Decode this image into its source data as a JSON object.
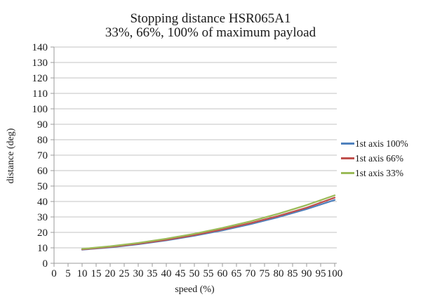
{
  "chart_data": {
    "type": "line",
    "title": "Stopping distance HSR065A1",
    "subtitle": "33%, 66%, 100% of maximum payload",
    "xlabel": "speed (%)",
    "ylabel": "distance (deg)",
    "xlim": [
      0,
      100
    ],
    "ylim": [
      0,
      140
    ],
    "x_ticks": [
      0,
      5,
      10,
      15,
      20,
      25,
      30,
      35,
      40,
      45,
      50,
      55,
      60,
      65,
      70,
      75,
      80,
      85,
      90,
      95,
      100
    ],
    "y_ticks": [
      0,
      10,
      20,
      30,
      40,
      50,
      60,
      70,
      80,
      90,
      100,
      110,
      120,
      130,
      140
    ],
    "grid": "horizontal",
    "legend_position": "right",
    "x": [
      10,
      20,
      30,
      40,
      50,
      60,
      70,
      80,
      90,
      100
    ],
    "series": [
      {
        "name": "1st axis 100%",
        "color": "#4F81BD",
        "values": [
          8.8,
          10.3,
          12.3,
          14.8,
          17.8,
          21.3,
          25.3,
          29.9,
          35.1,
          41.0
        ]
      },
      {
        "name": "1st axis 66%",
        "color": "#C0504D",
        "values": [
          9.0,
          10.6,
          12.7,
          15.2,
          18.3,
          21.9,
          26.0,
          30.7,
          36.0,
          42.5
        ]
      },
      {
        "name": "1st axis 33%",
        "color": "#9BBB59",
        "values": [
          9.3,
          11.0,
          13.2,
          15.9,
          19.1,
          22.9,
          27.2,
          32.1,
          37.7,
          44.0
        ]
      }
    ],
    "colors": {
      "gridline": "#C3C3C3",
      "axis": "#9B9B9B",
      "text": "#1A1A1A",
      "background": "#FFFFFF"
    }
  }
}
